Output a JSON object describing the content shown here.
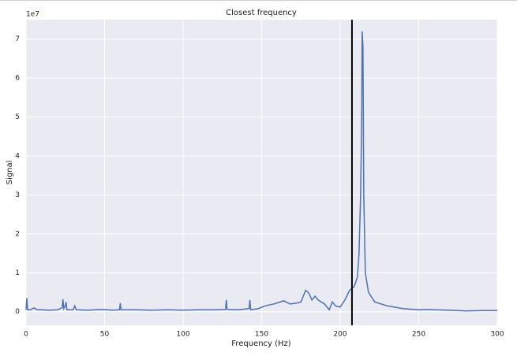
{
  "chart_data": {
    "type": "line",
    "title": "Closest frequency",
    "x_label": "Frequency (Hz)",
    "y_label": "Signal",
    "offset_label": "1e7",
    "x": [
      0,
      0.5,
      1,
      3,
      5,
      7,
      10,
      15,
      20,
      23,
      23.5,
      24,
      25,
      25.5,
      26,
      30,
      31,
      32,
      40,
      48,
      55,
      59.5,
      60,
      60.5,
      70,
      80,
      90,
      100,
      110,
      120,
      127,
      127.5,
      128,
      135,
      142,
      142.5,
      143,
      148,
      152,
      158,
      164,
      168,
      172,
      175,
      178,
      180,
      182,
      184,
      186,
      190,
      193,
      195,
      197,
      200,
      203,
      206,
      209,
      211,
      212,
      213,
      213.7,
      214,
      214.5,
      215,
      216,
      218,
      222,
      230,
      240,
      250,
      257,
      260,
      270,
      280,
      290,
      300
    ],
    "series": [
      {
        "name": "Signal",
        "color": "#4c72b0",
        "values": [
          0.05,
          0.35,
          0.05,
          0.05,
          0.1,
          0.05,
          0.05,
          0.04,
          0.05,
          0.1,
          0.32,
          0.08,
          0.15,
          0.25,
          0.05,
          0.05,
          0.15,
          0.05,
          0.04,
          0.06,
          0.04,
          0.05,
          0.22,
          0.05,
          0.05,
          0.04,
          0.05,
          0.04,
          0.05,
          0.05,
          0.06,
          0.3,
          0.06,
          0.05,
          0.08,
          0.3,
          0.05,
          0.08,
          0.15,
          0.2,
          0.28,
          0.2,
          0.22,
          0.25,
          0.55,
          0.48,
          0.3,
          0.4,
          0.3,
          0.2,
          0.05,
          0.25,
          0.15,
          0.12,
          0.3,
          0.55,
          0.65,
          0.9,
          1.5,
          3,
          5,
          7.2,
          6.8,
          3,
          1,
          0.5,
          0.25,
          0.15,
          0.08,
          0.05,
          0.06,
          0.05,
          0.04,
          0.02,
          0.03,
          0.03
        ]
      }
    ],
    "vline": 207.5,
    "vline_color": "#000000",
    "xlim": [
      0,
      300
    ],
    "xticks": [
      0,
      50,
      100,
      150,
      200,
      250,
      300
    ],
    "ylim": [
      -0.35,
      7.5
    ],
    "yticks": [
      0,
      1,
      2,
      3,
      4,
      5,
      6,
      7
    ],
    "grid": true
  }
}
